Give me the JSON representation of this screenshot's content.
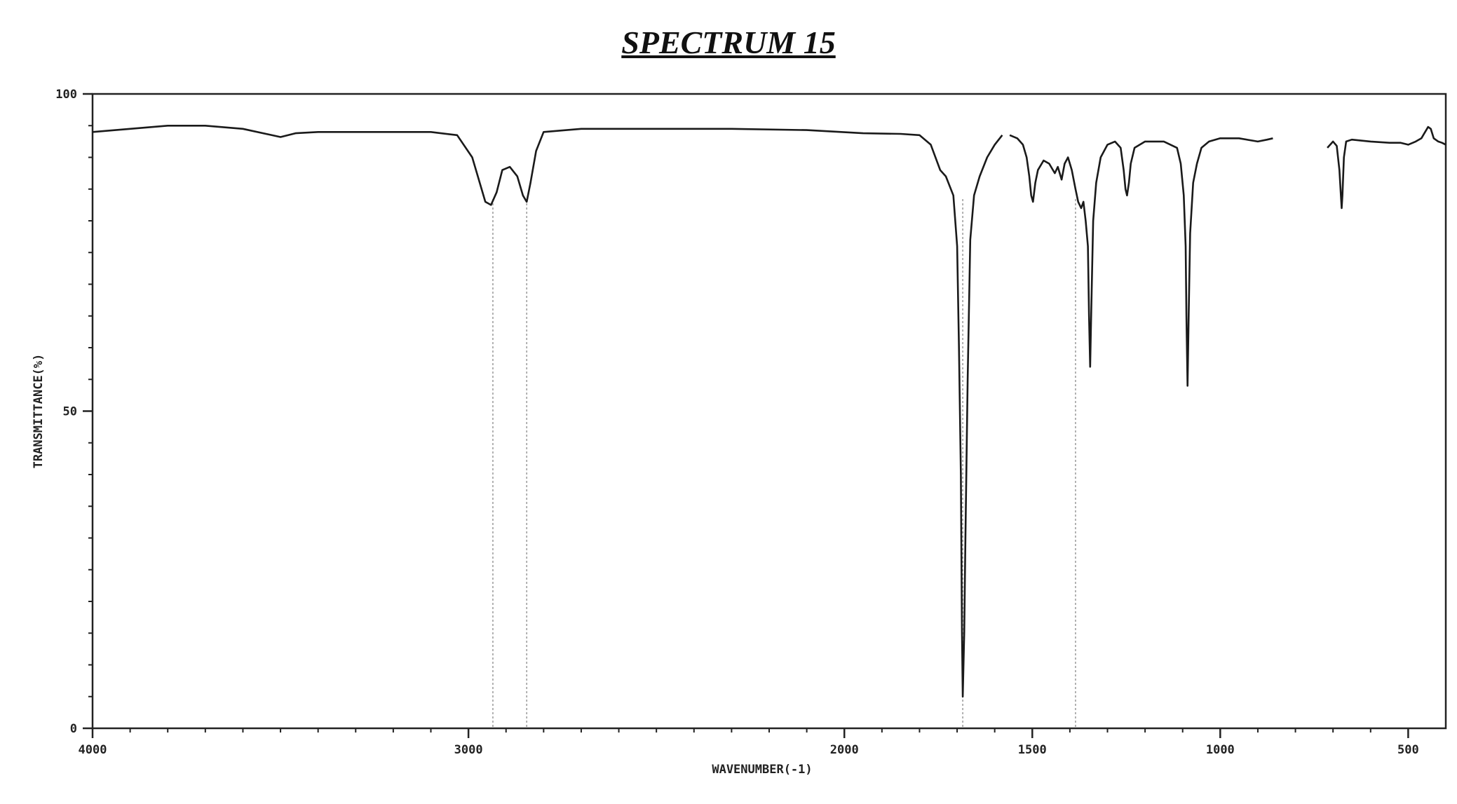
{
  "title": "SPECTRUM 15",
  "chart_data": {
    "type": "line",
    "title": "SPECTRUM 15",
    "xlabel": "WAVENUMBER(-1)",
    "ylabel": "TRANSMITTANCE(%)",
    "xlim": [
      4000,
      400
    ],
    "ylim": [
      0,
      100
    ],
    "x_reversed": true,
    "x_ticks": [
      4000,
      3000,
      2000,
      1500,
      1000,
      500
    ],
    "x_tick_labels": [
      "4000",
      "3000",
      "2000",
      "1500",
      "1000",
      "500"
    ],
    "y_ticks": [
      0,
      50,
      100
    ],
    "y_tick_labels": [
      "0",
      "50",
      "100"
    ],
    "grid": false,
    "legend": "none",
    "line_color": "#1a1a1a",
    "marker_color": "#999999",
    "peak_markers_x": [
      2935,
      2845,
      1685,
      1385
    ],
    "series": [
      {
        "segments": [
          [
            [
              4000,
              94
            ],
            [
              3900,
              94.5
            ],
            [
              3800,
              95
            ],
            [
              3700,
              95
            ],
            [
              3600,
              94.5
            ],
            [
              3500,
              93.2
            ],
            [
              3460,
              93.8
            ],
            [
              3400,
              94
            ],
            [
              3300,
              94
            ],
            [
              3100,
              94
            ],
            [
              3030,
              93.5
            ],
            [
              2990,
              90
            ],
            [
              2970,
              86
            ],
            [
              2955,
              83
            ],
            [
              2940,
              82.5
            ],
            [
              2925,
              84.5
            ],
            [
              2910,
              88
            ],
            [
              2890,
              88.5
            ],
            [
              2870,
              87
            ],
            [
              2855,
              84
            ],
            [
              2845,
              83
            ],
            [
              2835,
              86
            ],
            [
              2820,
              91
            ],
            [
              2800,
              94
            ],
            [
              2700,
              94.5
            ],
            [
              2500,
              94.5
            ],
            [
              2300,
              94.5
            ],
            [
              2100,
              94.3
            ],
            [
              1950,
              93.8
            ],
            [
              1850,
              93.7
            ],
            [
              1800,
              93.5
            ],
            [
              1770,
              92
            ],
            [
              1745,
              88
            ],
            [
              1730,
              87
            ],
            [
              1710,
              84
            ],
            [
              1700,
              76
            ],
            [
              1695,
              60
            ],
            [
              1690,
              40
            ],
            [
              1687,
              15
            ],
            [
              1685,
              5
            ],
            [
              1681,
              15
            ],
            [
              1678,
              30
            ],
            [
              1672,
              55
            ],
            [
              1665,
              77
            ],
            [
              1655,
              84
            ],
            [
              1640,
              87
            ],
            [
              1620,
              90
            ],
            [
              1600,
              92
            ],
            [
              1580,
              93.5
            ]
          ],
          [
            [
              1560,
              93.5
            ],
            [
              1540,
              93
            ],
            [
              1525,
              92
            ],
            [
              1515,
              90
            ],
            [
              1508,
              87
            ],
            [
              1503,
              84
            ],
            [
              1498,
              83
            ],
            [
              1492,
              86
            ],
            [
              1485,
              88
            ],
            [
              1470,
              89.5
            ],
            [
              1455,
              89
            ],
            [
              1440,
              87.5
            ],
            [
              1432,
              88.5
            ],
            [
              1422,
              86.5
            ],
            [
              1414,
              89
            ],
            [
              1405,
              90
            ],
            [
              1395,
              88
            ],
            [
              1385,
              85
            ],
            [
              1378,
              83
            ],
            [
              1370,
              82
            ],
            [
              1364,
              83
            ],
            [
              1358,
              80
            ],
            [
              1352,
              76
            ],
            [
              1349,
              65
            ],
            [
              1346,
              57
            ],
            [
              1343,
              66
            ],
            [
              1338,
              80
            ],
            [
              1330,
              86
            ],
            [
              1318,
              90
            ],
            [
              1300,
              92
            ],
            [
              1280,
              92.5
            ],
            [
              1265,
              91.5
            ],
            [
              1257,
              88
            ],
            [
              1252,
              85
            ],
            [
              1248,
              84
            ],
            [
              1243,
              86
            ],
            [
              1238,
              89
            ],
            [
              1228,
              91.5
            ],
            [
              1200,
              92.5
            ],
            [
              1150,
              92.5
            ],
            [
              1115,
              91.5
            ],
            [
              1105,
              89
            ],
            [
              1097,
              84
            ],
            [
              1092,
              76
            ],
            [
              1090,
              65
            ],
            [
              1087,
              54
            ],
            [
              1084,
              65
            ],
            [
              1080,
              78
            ],
            [
              1072,
              86
            ],
            [
              1062,
              89
            ],
            [
              1050,
              91.5
            ],
            [
              1030,
              92.5
            ],
            [
              1000,
              93
            ],
            [
              950,
              93
            ],
            [
              900,
              92.5
            ],
            [
              875,
              92.8
            ],
            [
              860,
              93
            ]
          ],
          [
            [
              715,
              91.5
            ],
            [
              700,
              92.5
            ],
            [
              690,
              91.8
            ],
            [
              683,
              88
            ],
            [
              679,
              84
            ],
            [
              677,
              82
            ],
            [
              675,
              84
            ],
            [
              671,
              90
            ],
            [
              665,
              92.5
            ],
            [
              650,
              92.8
            ],
            [
              600,
              92.5
            ],
            [
              550,
              92.3
            ],
            [
              520,
              92.3
            ],
            [
              500,
              92
            ],
            [
              480,
              92.5
            ],
            [
              465,
              93
            ],
            [
              455,
              94
            ],
            [
              447,
              94.8
            ],
            [
              440,
              94.5
            ],
            [
              432,
              93
            ],
            [
              420,
              92.5
            ],
            [
              410,
              92.3
            ],
            [
              400,
              92
            ]
          ]
        ]
      }
    ]
  }
}
